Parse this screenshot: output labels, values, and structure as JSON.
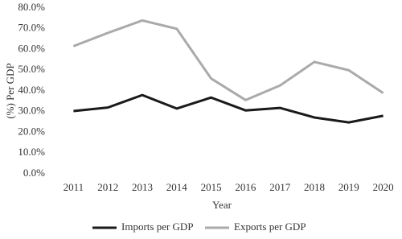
{
  "chart_data": {
    "type": "line",
    "x_label": "Year",
    "y_label": "(%) Per GDP",
    "categories": [
      "2011",
      "2012",
      "2013",
      "2014",
      "2015",
      "2016",
      "2017",
      "2018",
      "2019",
      "2020"
    ],
    "series": [
      {
        "name": "Imports per GDP",
        "color": "#1a1a1a",
        "values": [
          30.3,
          32,
          38,
          31.5,
          36.8,
          30.6,
          31.8,
          27.2,
          24.8,
          28
        ]
      },
      {
        "name": "Exports per GDP",
        "color": "#aaaaaa",
        "values": [
          61.6,
          68,
          74,
          70,
          46,
          35.6,
          42.6,
          54,
          50,
          39
        ]
      }
    ],
    "ylim": [
      0,
      80
    ],
    "yticks": [
      {
        "value": 0,
        "label": "0.0%"
      },
      {
        "value": 10,
        "label": "10.0%"
      },
      {
        "value": 20,
        "label": "20.0%"
      },
      {
        "value": 30,
        "label": "30.0%"
      },
      {
        "value": 40,
        "label": "40.0%"
      },
      {
        "value": 50,
        "label": "50.0%"
      },
      {
        "value": 60,
        "label": "60.0%"
      },
      {
        "value": 70,
        "label": "70.0%"
      },
      {
        "value": 80,
        "label": "80.0%"
      }
    ],
    "grid": false,
    "legend": "bottom"
  }
}
